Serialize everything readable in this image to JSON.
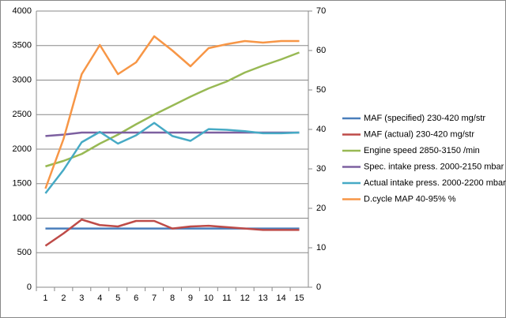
{
  "chart_data": {
    "type": "line",
    "categories": [
      "1",
      "2",
      "3",
      "4",
      "5",
      "6",
      "7",
      "8",
      "9",
      "10",
      "11",
      "12",
      "13",
      "14",
      "15"
    ],
    "ylim": [
      0,
      4000
    ],
    "yticks": [
      0,
      500,
      1000,
      1500,
      2000,
      2500,
      3000,
      3500,
      4000
    ],
    "y2lim": [
      0,
      70
    ],
    "y2ticks": [
      0,
      10,
      20,
      30,
      40,
      50,
      60,
      70
    ],
    "grid": true,
    "legend": "right",
    "series": [
      {
        "name": "MAF (specified) 230-420  mg/str",
        "color": "#4a7ebb",
        "values": [
          850,
          850,
          850,
          850,
          850,
          850,
          850,
          850,
          850,
          850,
          850,
          850,
          850,
          850,
          850
        ]
      },
      {
        "name": "MAF (actual) 230-420  mg/str",
        "color": "#be4b48",
        "values": [
          600,
          780,
          980,
          900,
          880,
          960,
          960,
          850,
          880,
          890,
          870,
          850,
          830,
          830,
          830
        ]
      },
      {
        "name": "Engine speed 2850-3150  /min",
        "color": "#98b954",
        "values": [
          1750,
          1830,
          1930,
          2080,
          2210,
          2360,
          2500,
          2630,
          2760,
          2880,
          2980,
          3110,
          3210,
          3300,
          3400
        ]
      },
      {
        "name": "Spec. intake press. 2000-2150  mbar",
        "color": "#7d60a0",
        "values": [
          2190,
          2210,
          2240,
          2240,
          2240,
          2240,
          2240,
          2240,
          2240,
          2240,
          2240,
          2240,
          2240,
          2240,
          2240
        ]
      },
      {
        "name": "Actual intake press. 2000-2200  mbar",
        "color": "#46aac5",
        "values": [
          1360,
          1700,
          2100,
          2250,
          2080,
          2200,
          2380,
          2190,
          2120,
          2290,
          2280,
          2260,
          2230,
          2230,
          2240
        ]
      },
      {
        "name": "D.cycle MAP 40-95% %",
        "color": "#f79646",
        "axis": "y2",
        "values": [
          25,
          37.6,
          54,
          61.4,
          54,
          57,
          63.6,
          60,
          56,
          60.6,
          61.6,
          62.4,
          62,
          62.4,
          62.4
        ]
      }
    ]
  }
}
